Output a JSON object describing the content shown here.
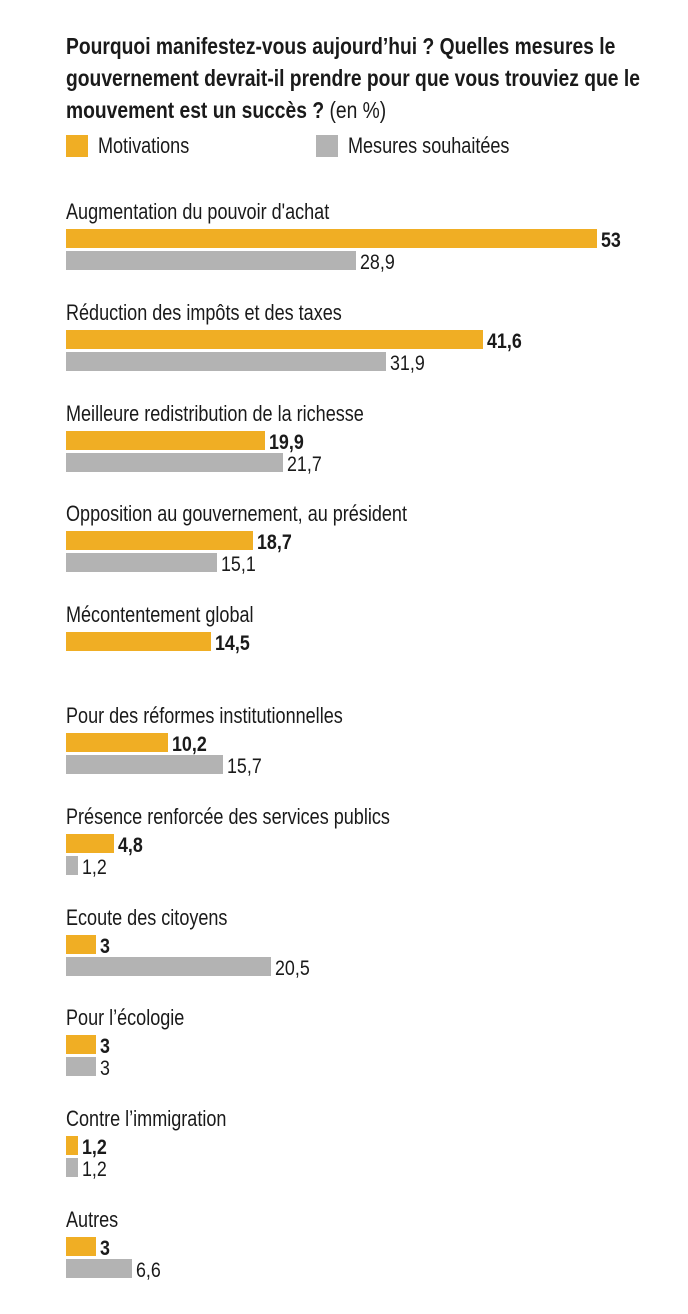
{
  "chart_data": {
    "type": "bar",
    "orientation": "horizontal",
    "title": "Pourquoi manifestez-vous aujourd’hui ? Quelles mesures le gouvernement devrait-il prendre pour que vous trouviez que le mouvement est un succès ?",
    "unit": "(en %)",
    "legend_position": "top-left",
    "grid": false,
    "xlim": [
      0,
      53
    ],
    "categories": [
      "Augmentation du pouvoir d'achat",
      "Réduction des impôts et des taxes",
      "Meilleure redistribution de la richesse",
      "Opposition au gouvernement, au président",
      "Mécontentement global",
      "Pour des réformes institutionnelles",
      "Présence renforcée des services publics",
      "Ecoute des citoyens",
      "Pour l’écologie",
      "Contre l’immigration",
      "Autres"
    ],
    "series": [
      {
        "name": "Motivations",
        "color": "#F0AE24",
        "values": [
          53,
          41.6,
          19.9,
          18.7,
          14.5,
          10.2,
          4.8,
          3,
          3,
          1.2,
          3
        ],
        "labels": [
          "53",
          "41,6",
          "19,9",
          "18,7",
          "14,5",
          "10,2",
          "4,8",
          "3",
          "3",
          "1,2",
          "3"
        ]
      },
      {
        "name": "Mesures souhaitées",
        "color": "#B3B3B3",
        "values": [
          28.9,
          31.9,
          21.7,
          15.1,
          null,
          15.7,
          1.2,
          20.5,
          3,
          1.2,
          6.6
        ],
        "labels": [
          "28,9",
          "31,9",
          "21,7",
          "15,1",
          null,
          "15,7",
          "1,2",
          "20,5",
          "3",
          "1,2",
          "6,6"
        ]
      }
    ]
  }
}
